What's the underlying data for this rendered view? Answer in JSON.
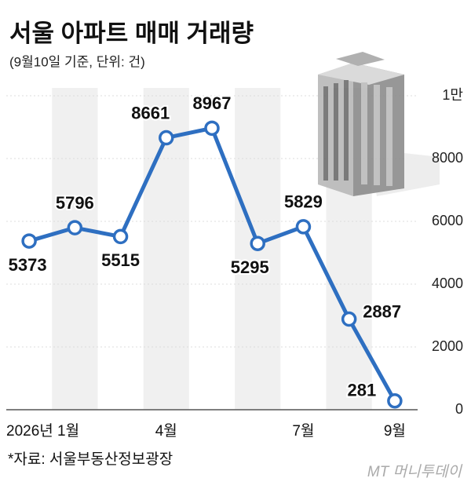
{
  "chart_data": {
    "type": "line",
    "title": "서울 아파트 매매 거래량",
    "subtitle": "(9월10일 기준, 단위: 건)",
    "categories": [
      "2026년 1월",
      null,
      null,
      "4월",
      null,
      null,
      "7월",
      null,
      "9월"
    ],
    "series": [
      {
        "name": "거래량",
        "color": "#2e6fc1",
        "values": [
          5373,
          5796,
          5515,
          8661,
          8967,
          5295,
          5829,
          2887,
          281
        ]
      }
    ],
    "ylim": [
      0,
      10000
    ],
    "yticks": [
      0,
      2000,
      4000,
      6000,
      8000,
      {
        "value": 10000,
        "label": "1만"
      }
    ],
    "grid": true,
    "source": "*자료: 서울부동산정보광장",
    "brand": "MT 머니투데이"
  }
}
